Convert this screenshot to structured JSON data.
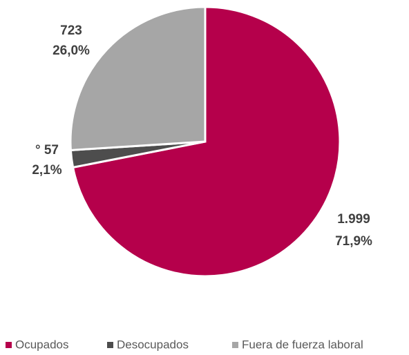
{
  "chart_data": {
    "type": "pie",
    "categories": [
      "Ocupados",
      "Desocupados",
      "Fuera de fuerza laboral"
    ],
    "values": [
      1999,
      57,
      723
    ],
    "value_labels": [
      "1.999",
      "° 57",
      "723"
    ],
    "percent_labels": [
      "71,9%",
      "2,1%",
      "26,0%"
    ],
    "colors": [
      "#b5004b",
      "#4d4d4d",
      "#a6a6a6"
    ],
    "legend": "bottom"
  }
}
